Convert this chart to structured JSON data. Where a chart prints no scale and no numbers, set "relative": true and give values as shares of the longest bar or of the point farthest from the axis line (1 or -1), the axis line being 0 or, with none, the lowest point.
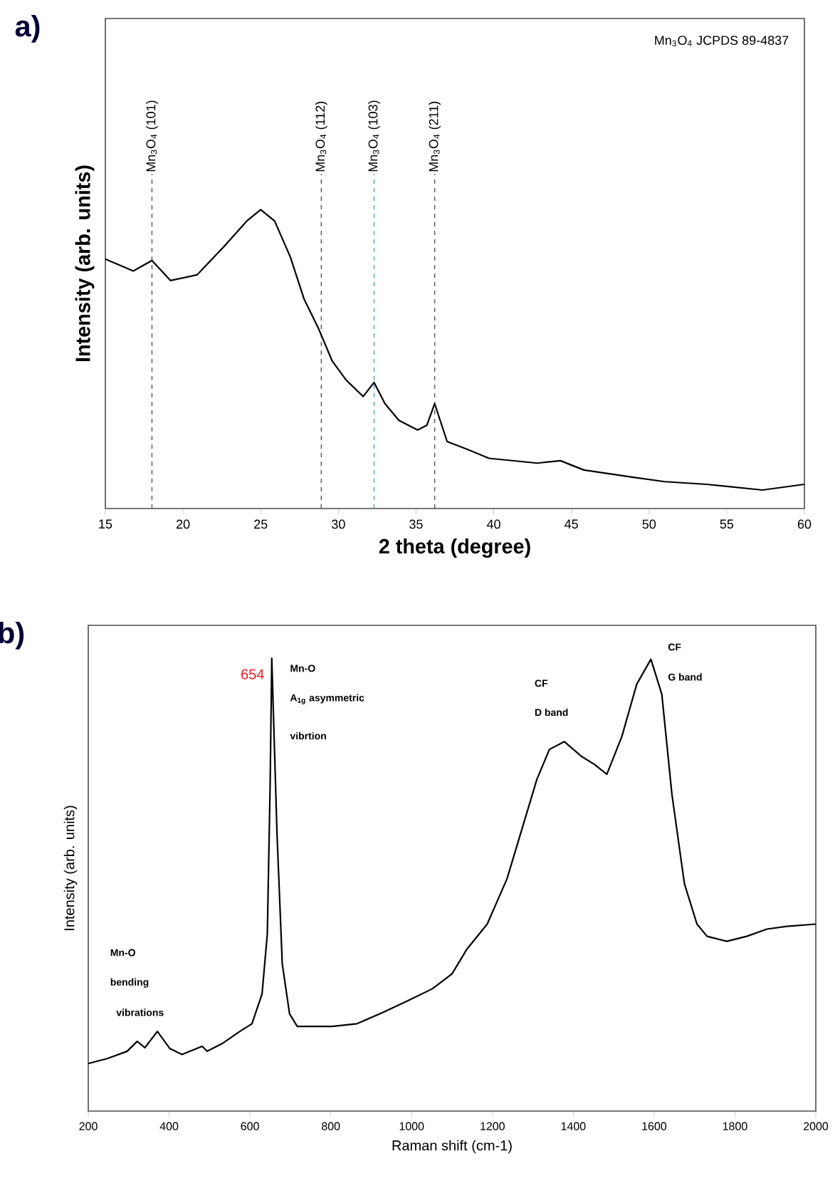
{
  "chart_data": [
    {
      "type": "line",
      "title": "a)",
      "xlabel": "2 theta (degree)",
      "ylabel": "Intensity (arb. units)",
      "relative": true,
      "xlim": [
        15,
        60
      ],
      "xticks": [
        15,
        20,
        25,
        30,
        35,
        40,
        45,
        50,
        55,
        60
      ],
      "x": [
        15.0,
        16.8,
        18.0,
        19.2,
        20.9,
        22.6,
        24.1,
        25.0,
        25.9,
        26.9,
        27.8,
        28.7,
        29.6,
        30.5,
        31.6,
        32.3,
        33.0,
        33.9,
        35.1,
        35.7,
        36.2,
        37.0,
        38.2,
        39.7,
        42.8,
        44.3,
        45.8,
        48.9,
        51.0,
        53.7,
        57.3,
        60.0
      ],
      "series": [
        {
          "color": "#000000",
          "values": [
            0.835,
            0.795,
            0.83,
            0.763,
            0.782,
            0.875,
            0.962,
            1.0,
            0.962,
            0.843,
            0.7,
            0.605,
            0.494,
            0.43,
            0.375,
            0.422,
            0.351,
            0.295,
            0.263,
            0.279,
            0.351,
            0.224,
            0.2,
            0.168,
            0.152,
            0.16,
            0.129,
            0.105,
            0.09,
            0.081,
            0.062,
            0.081
          ]
        }
      ],
      "ref_lines": [
        {
          "axis": "x",
          "value": 18.0,
          "label": "Mn$_{3}$O$_{4}$ (101)",
          "color": "#555555",
          "line_style": "dashed"
        },
        {
          "axis": "x",
          "value": 28.9,
          "label": "Mn$_{3}$O$_{4}$ (112)",
          "color": "#555555",
          "line_style": "dashed"
        },
        {
          "axis": "x",
          "value": 32.3,
          "label": "Mn$_{3}$O$_{4}$ (103)",
          "color": "#4aa3b5",
          "line_style": "dashed"
        },
        {
          "axis": "x",
          "value": 36.2,
          "label": "Mn$_{3}$O$_{4}$ (211)",
          "color": "#555555",
          "line_style": "dashed"
        }
      ],
      "annotations": [
        "Mn$_{3}$O$_{4}$ JCPDS 89-4837"
      ]
    },
    {
      "type": "line",
      "title": "b)",
      "xlabel": "Raman shift (cm-1)",
      "ylabel": "Intensity (arb. units)",
      "relative": true,
      "xlim": [
        200,
        2000
      ],
      "xticks": [
        200,
        400,
        600,
        800,
        1000,
        1200,
        1400,
        1600,
        1800,
        2000
      ],
      "x": [
        200,
        247,
        296,
        321,
        340,
        371,
        402,
        432,
        482,
        494,
        531,
        575,
        605,
        630,
        643,
        650,
        654,
        667,
        680,
        698,
        717,
        803,
        865,
        927,
        989,
        1051,
        1100,
        1137,
        1187,
        1236,
        1273,
        1310,
        1341,
        1378,
        1421,
        1452,
        1483,
        1520,
        1557,
        1592,
        1619,
        1644,
        1675,
        1706,
        1731,
        1780,
        1829,
        1879,
        1928,
        2000
      ],
      "series": [
        {
          "color": "#000000",
          "values": [
            0.105,
            0.116,
            0.132,
            0.154,
            0.14,
            0.176,
            0.138,
            0.125,
            0.143,
            0.132,
            0.149,
            0.176,
            0.193,
            0.259,
            0.391,
            0.722,
            1.0,
            0.612,
            0.325,
            0.215,
            0.187,
            0.187,
            0.193,
            0.217,
            0.243,
            0.27,
            0.303,
            0.358,
            0.413,
            0.513,
            0.623,
            0.733,
            0.799,
            0.816,
            0.783,
            0.766,
            0.744,
            0.827,
            0.943,
            0.998,
            0.921,
            0.7,
            0.502,
            0.413,
            0.386,
            0.375,
            0.386,
            0.402,
            0.408,
            0.413
          ]
        }
      ],
      "annotations": [
        "654",
        "Mn-O",
        "A$_{1g}$ asymmetric",
        "vibrtion",
        "CF",
        "D band",
        "CF",
        "G band",
        "Mn-O",
        "bending",
        "vibrations"
      ]
    }
  ]
}
